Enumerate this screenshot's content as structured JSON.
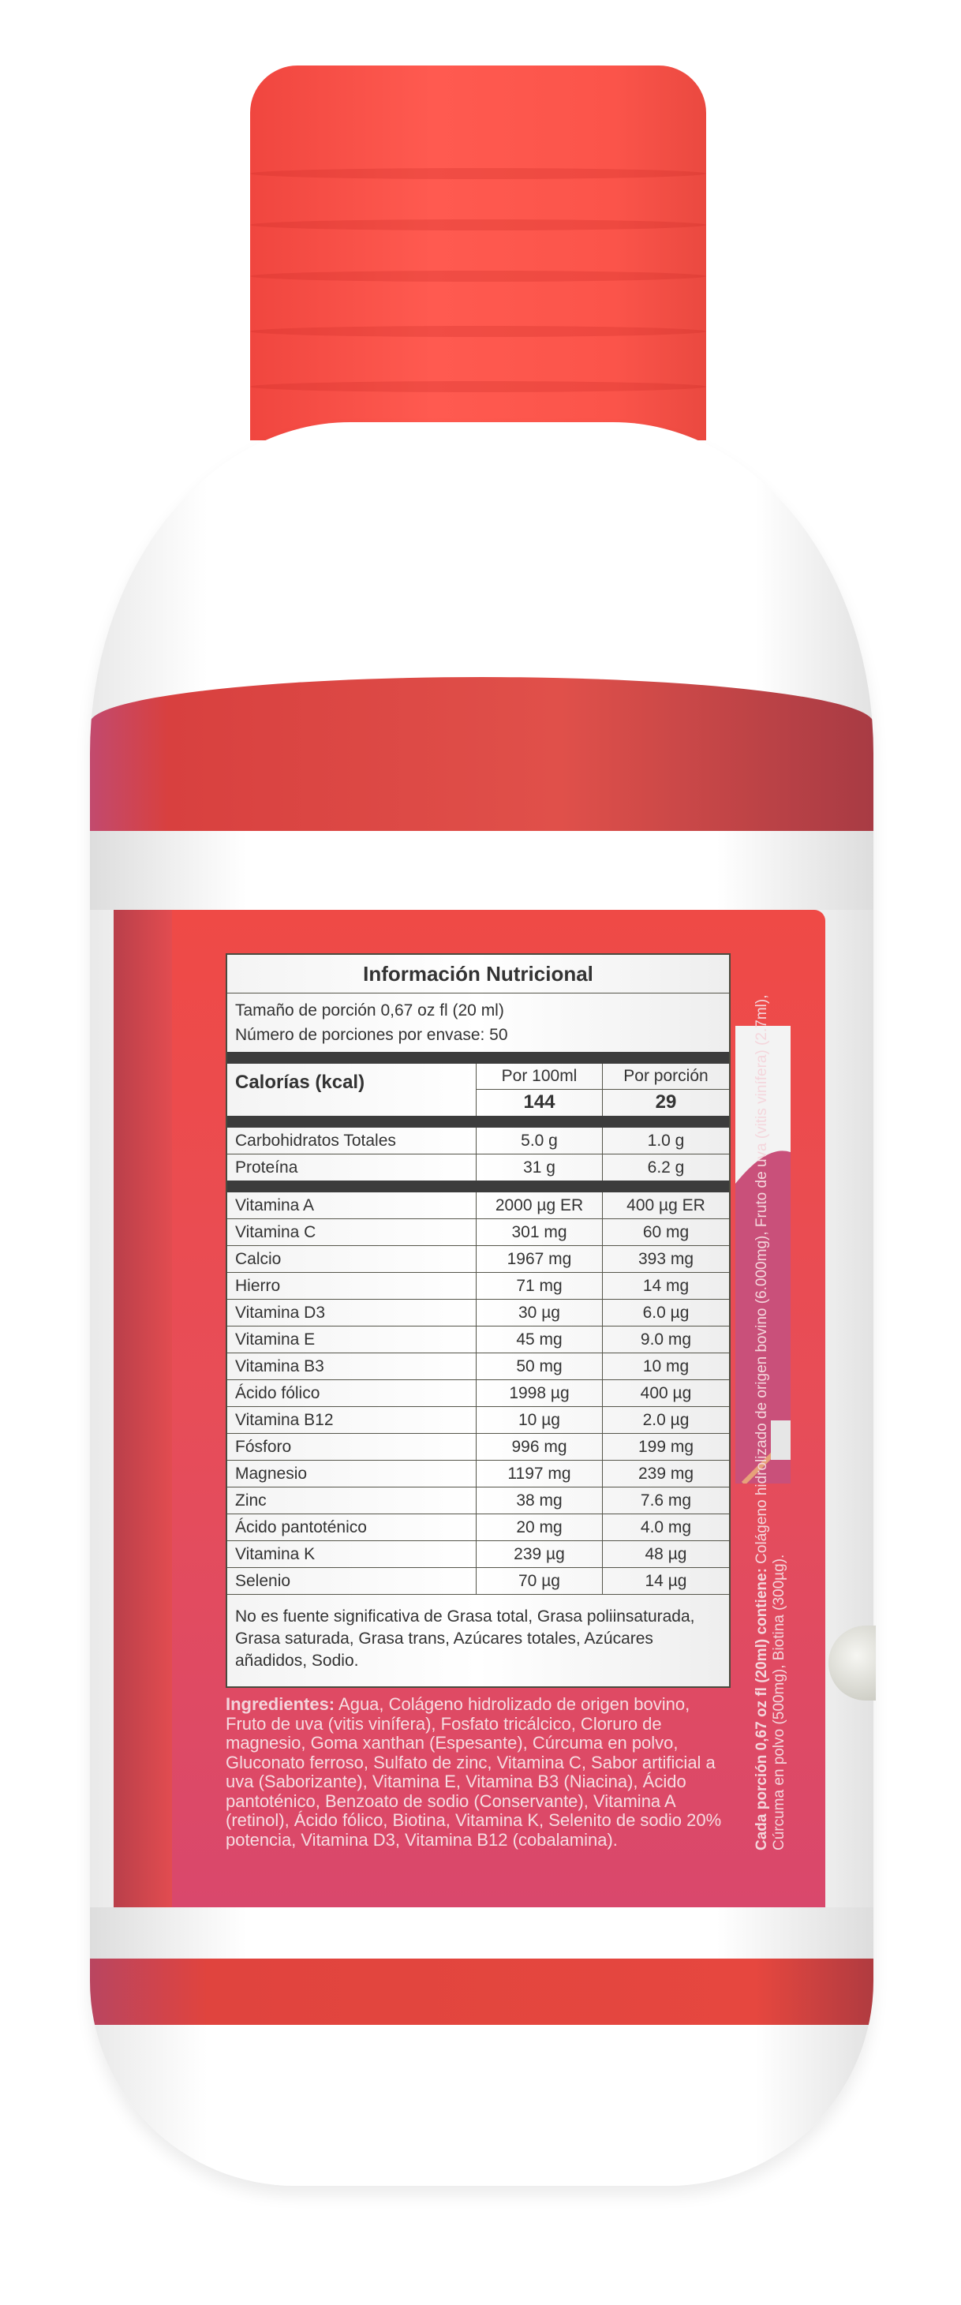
{
  "nutrition": {
    "title": "Información Nutricional",
    "serving_size": "Tamaño de porción 0,67 oz fl (20 ml)",
    "servings_per_container": "Número de porciones por envase: 50",
    "calories_label": "Calorías (kcal)",
    "col_per100": "Por 100ml",
    "col_perserving": "Por porción",
    "calories_100": "144",
    "calories_serving": "29",
    "macros": [
      {
        "name": "Carbohidratos Totales",
        "per100": "5.0 g",
        "serving": "1.0 g"
      },
      {
        "name": "Proteína",
        "per100": "31 g",
        "serving": "6.2 g"
      }
    ],
    "vitamins": [
      {
        "name": "Vitamina A",
        "per100": "2000 µg ER",
        "serving": "400 µg ER"
      },
      {
        "name": "Vitamina C",
        "per100": "301 mg",
        "serving": "60 mg"
      },
      {
        "name": "Calcio",
        "per100": "1967 mg",
        "serving": "393 mg"
      },
      {
        "name": "Hierro",
        "per100": "71 mg",
        "serving": "14 mg"
      },
      {
        "name": "Vitamina D3",
        "per100": "30 µg",
        "serving": "6.0 µg"
      },
      {
        "name": "Vitamina E",
        "per100": "45 mg",
        "serving": "9.0 mg"
      },
      {
        "name": "Vitamina B3",
        "per100": "50 mg",
        "serving": "10 mg"
      },
      {
        "name": "Ácido fólico",
        "per100": "1998 µg",
        "serving": "400 µg"
      },
      {
        "name": "Vitamina B12",
        "per100": "10 µg",
        "serving": "2.0 µg"
      },
      {
        "name": "Fósforo",
        "per100": "996 mg",
        "serving": "199 mg"
      },
      {
        "name": "Magnesio",
        "per100": "1197 mg",
        "serving": "239 mg"
      },
      {
        "name": "Zinc",
        "per100": "38 mg",
        "serving": "7.6 mg"
      },
      {
        "name": "Ácido pantoténico",
        "per100": "20 mg",
        "serving": "4.0 mg"
      },
      {
        "name": "Vitamina K",
        "per100": "239 µg",
        "serving": "48 µg"
      },
      {
        "name": "Selenio",
        "per100": "70 µg",
        "serving": "14 µg"
      }
    ],
    "footnote": "No es fuente significativa de Grasa total, Grasa poliinsaturada, Grasa saturada, Grasa trans, Azúcares totales, Azúcares añadidos, Sodio."
  },
  "ingredients": {
    "label": "Ingredientes:",
    "text": " Agua, Colágeno hidrolizado de origen bovino, Fruto de uva (vitis vinífera), Fosfato tricálcico, Cloruro de magnesio, Goma xanthan (Espesante), Cúrcuma  en polvo, Gluconato ferroso, Sulfato de zinc, Vitamina C, Sabor artificial a uva (Saborizante), Vitamina E, Vitamina B3 (Niacina), Ácido pantoténico, Benzoato de sodio (Conservante), Vitamina A (retinol), Ácido fólico, Biotina, Vitamina K, Selenito de sodio 20% potencia, Vitamina D3, Vitamina B12 (cobalamina)."
  },
  "per_serving": {
    "label": "Cada porción 0,67 oz fl (20ml) contiene:",
    "text": " Colágeno hidrolizado de origen bovino (6.000mg), Fruto de uva (vitis vinífera) (2.7ml), Cúrcuma en polvo (500mg), Biotina (300µg)."
  },
  "colors": {
    "cap": "#fc5249",
    "label_red": "#ef4a46",
    "label_pink": "#d9486c"
  }
}
